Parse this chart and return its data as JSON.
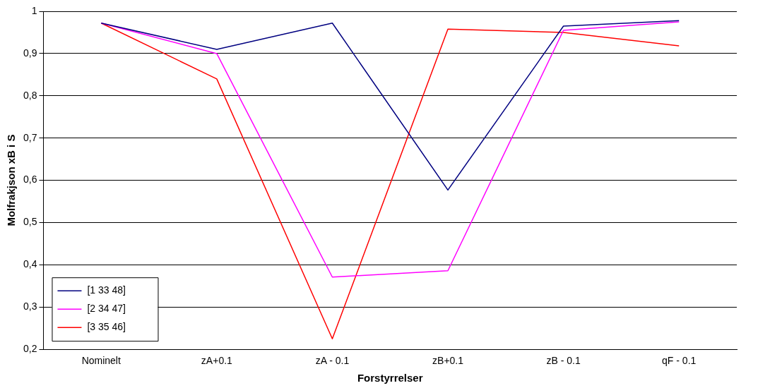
{
  "chart_data": {
    "type": "line",
    "xlabel": "Forstyrrelser",
    "ylabel": "Molfrakjson xB i S",
    "categories": [
      "Nominelt",
      "zA+0.1",
      "zA - 0.1",
      "zB+0.1",
      "zB - 0.1",
      "qF - 0.1"
    ],
    "series": [
      {
        "name": "[1 33 48]",
        "color": "#000080",
        "values": [
          0.972,
          0.91,
          0.972,
          0.577,
          0.965,
          0.978
        ]
      },
      {
        "name": "[2 34 47]",
        "color": "#ff00ff",
        "values": [
          0.972,
          0.9,
          0.371,
          0.386,
          0.955,
          0.975
        ]
      },
      {
        "name": "[3 35 46]",
        "color": "#ff0000",
        "values": [
          0.972,
          0.84,
          0.225,
          0.958,
          0.95,
          0.918
        ]
      }
    ],
    "ylim": [
      0.2,
      1
    ],
    "yticks": [
      {
        "value": 0.2,
        "label": "0,2"
      },
      {
        "value": 0.3,
        "label": "0,3"
      },
      {
        "value": 0.4,
        "label": "0,4"
      },
      {
        "value": 0.5,
        "label": "0,5"
      },
      {
        "value": 0.6,
        "label": "0,6"
      },
      {
        "value": 0.7,
        "label": "0,7"
      },
      {
        "value": 0.8,
        "label": "0,8"
      },
      {
        "value": 0.9,
        "label": "0,9"
      },
      {
        "value": 1,
        "label": "1"
      }
    ],
    "grid": "y",
    "legend": "bottom left",
    "marker": "none",
    "line_style": "solid"
  }
}
